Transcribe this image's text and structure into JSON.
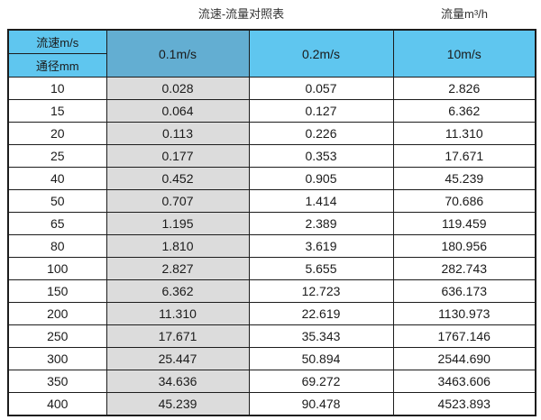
{
  "page": {
    "title_left": "流速-流量对照表",
    "title_right": "流量m³/h"
  },
  "table": {
    "corner": {
      "top": "流速m/s",
      "bottom": "通径mm"
    },
    "columns": [
      "0.1m/s",
      "0.2m/s",
      "10m/s"
    ],
    "rows": [
      [
        "10",
        "0.028",
        "0.057",
        "2.826"
      ],
      [
        "15",
        "0.064",
        "0.127",
        "6.362"
      ],
      [
        "20",
        "0.113",
        "0.226",
        "11.310"
      ],
      [
        "25",
        "0.177",
        "0.353",
        "17.671"
      ],
      [
        "40",
        "0.452",
        "0.905",
        "45.239"
      ],
      [
        "50",
        "0.707",
        "1.414",
        "70.686"
      ],
      [
        "65",
        "1.195",
        "2.389",
        "119.459"
      ],
      [
        "80",
        "1.810",
        "3.619",
        "180.956"
      ],
      [
        "100",
        "2.827",
        "5.655",
        "282.743"
      ],
      [
        "150",
        "6.362",
        "12.723",
        "636.173"
      ],
      [
        "200",
        "11.310",
        "22.619",
        "1130.973"
      ],
      [
        "250",
        "17.671",
        "35.343",
        "1767.146"
      ],
      [
        "300",
        "25.447",
        "50.894",
        "2544.690"
      ],
      [
        "350",
        "34.636",
        "69.272",
        "3463.606"
      ],
      [
        "400",
        "45.239",
        "90.478",
        "4523.893"
      ]
    ]
  },
  "colors": {
    "header_light_blue": "#5fc6ef",
    "header_dark_blue": "#63aed2",
    "column_grey": "#dcdcdc",
    "border": "#1c1c1c",
    "text": "#1a1a1a"
  },
  "chart_data": {
    "type": "table",
    "title": "流速-流量对照表",
    "unit_label": "流量m³/h",
    "row_header": "通径mm",
    "column_header": "流速m/s",
    "columns": [
      "0.1m/s",
      "0.2m/s",
      "10m/s"
    ],
    "diameters_mm": [
      10,
      15,
      20,
      25,
      40,
      50,
      65,
      80,
      100,
      150,
      200,
      250,
      300,
      350,
      400
    ],
    "flow_m3h": {
      "0.1m/s": [
        0.028,
        0.064,
        0.113,
        0.177,
        0.452,
        0.707,
        1.195,
        1.81,
        2.827,
        6.362,
        11.31,
        17.671,
        25.447,
        34.636,
        45.239
      ],
      "0.2m/s": [
        0.057,
        0.127,
        0.226,
        0.353,
        0.905,
        1.414,
        2.389,
        3.619,
        5.655,
        12.723,
        22.619,
        35.343,
        50.894,
        69.272,
        90.478
      ],
      "10m/s": [
        2.826,
        6.362,
        11.31,
        17.671,
        45.239,
        70.686,
        119.459,
        180.956,
        282.743,
        636.173,
        1130.973,
        1767.146,
        2544.69,
        3463.606,
        4523.893
      ]
    }
  }
}
